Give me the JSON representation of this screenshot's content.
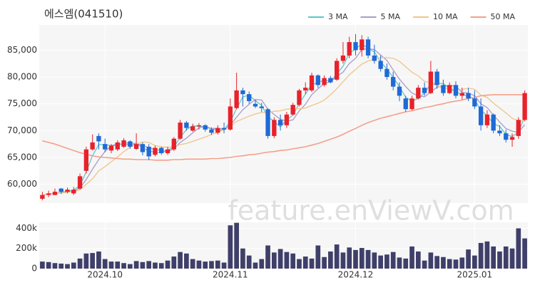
{
  "chart_data": {
    "type": "candlestick",
    "title": "에스엠(041510)",
    "watermark": "feature.enViewV.com",
    "categories": [
      null,
      null,
      null,
      null,
      null,
      null,
      null,
      null,
      null,
      null,
      "2024.10",
      null,
      null,
      null,
      null,
      null,
      null,
      null,
      null,
      null,
      null,
      null,
      null,
      null,
      null,
      null,
      null,
      null,
      null,
      null,
      "2024.11",
      null,
      null,
      null,
      null,
      null,
      null,
      null,
      null,
      null,
      null,
      null,
      null,
      null,
      null,
      null,
      null,
      null,
      null,
      null,
      "2024.12",
      null,
      null,
      null,
      null,
      null,
      null,
      null,
      null,
      null,
      null,
      null,
      null,
      null,
      null,
      null,
      null,
      null,
      null,
      "2025.01",
      null,
      null,
      null,
      null,
      null,
      null,
      null,
      null
    ],
    "candles": {
      "up_color": "#e8212b",
      "down_color": "#1f6ad6",
      "open": [
        57300,
        58000,
        58000,
        59200,
        58600,
        58300,
        59200,
        62500,
        66500,
        69000,
        67500,
        66300,
        66500,
        67000,
        68000,
        66600,
        67500,
        67000,
        65500,
        66800,
        65800,
        66500,
        68500,
        71500,
        70000,
        70800,
        71000,
        70200,
        69600,
        70500,
        70200,
        74200,
        77500,
        76800,
        75000,
        74500,
        74000,
        69000,
        72000,
        71000,
        73000,
        74800,
        77500,
        77500,
        80300,
        78500,
        79800,
        79500,
        83000,
        84000,
        86500,
        85000,
        87000,
        84000,
        83000,
        81500,
        80000,
        78200,
        76000,
        74000,
        76000,
        78000,
        77000,
        81000,
        78500,
        77000,
        78500,
        76500,
        77000,
        76000,
        74500,
        71000,
        73000,
        70000,
        69500,
        68300,
        69000,
        72000
      ],
      "high": [
        58600,
        58800,
        59200,
        59300,
        59400,
        59500,
        62000,
        67000,
        69300,
        69500,
        68500,
        67500,
        68200,
        68600,
        68200,
        69500,
        67800,
        67500,
        67200,
        67000,
        67000,
        68800,
        72000,
        71800,
        71300,
        71400,
        71200,
        70600,
        71000,
        71500,
        76000,
        80800,
        78000,
        77300,
        75800,
        75200,
        74200,
        72500,
        73000,
        73500,
        75200,
        77800,
        79000,
        80800,
        80500,
        80300,
        80200,
        83500,
        86500,
        87500,
        88000,
        87800,
        87500,
        86000,
        84000,
        82500,
        81000,
        79000,
        76500,
        76500,
        78500,
        79000,
        83000,
        81500,
        79500,
        79000,
        79200,
        78000,
        78000,
        77500,
        76000,
        73800,
        73200,
        71000,
        70200,
        69500,
        72500,
        77500
      ],
      "low": [
        57000,
        57600,
        58000,
        58200,
        58300,
        58000,
        59000,
        62000,
        66300,
        66500,
        66000,
        65800,
        66200,
        66800,
        66600,
        66400,
        65400,
        64500,
        65200,
        65500,
        65500,
        66200,
        68300,
        70000,
        69800,
        70200,
        69800,
        69200,
        69300,
        69500,
        70000,
        74000,
        74500,
        75000,
        74200,
        73500,
        68500,
        68600,
        70000,
        70500,
        72800,
        74500,
        76800,
        77200,
        78000,
        78200,
        78800,
        79300,
        82500,
        83500,
        84000,
        83800,
        83500,
        82500,
        81000,
        79500,
        77500,
        75500,
        73500,
        73800,
        75800,
        76500,
        76800,
        77800,
        76500,
        76800,
        76000,
        75800,
        75500,
        74000,
        70000,
        70500,
        69500,
        69000,
        67800,
        67000,
        68500,
        71800
      ],
      "close": [
        58000,
        58300,
        58600,
        58600,
        59000,
        59000,
        61500,
        66500,
        67800,
        68000,
        66500,
        67200,
        67800,
        68200,
        67000,
        67500,
        66000,
        65200,
        66800,
        65800,
        66500,
        68500,
        71500,
        70500,
        70800,
        71000,
        70200,
        69600,
        70500,
        70200,
        74500,
        77500,
        76800,
        75500,
        74500,
        74200,
        69000,
        72000,
        71000,
        73000,
        74800,
        77500,
        78000,
        80300,
        78500,
        79800,
        79000,
        83000,
        84000,
        86500,
        85000,
        87000,
        84000,
        83000,
        81500,
        80000,
        78200,
        76500,
        74000,
        76000,
        78000,
        77000,
        81000,
        78500,
        77000,
        78500,
        76500,
        77000,
        76000,
        74500,
        71000,
        73000,
        70000,
        69500,
        68300,
        68800,
        72000,
        77000
      ]
    },
    "series": [
      {
        "name": "3 MA",
        "color": "#5cc8c8",
        "values": [
          58000,
          58200,
          58300,
          58500,
          58700,
          58900,
          59800,
          62300,
          65300,
          67400,
          67400,
          67200,
          67200,
          67700,
          67700,
          67600,
          66800,
          66200,
          66000,
          65900,
          66400,
          66900,
          68800,
          70200,
          70900,
          70800,
          70700,
          70300,
          70100,
          70100,
          71700,
          74100,
          76300,
          76600,
          75600,
          74700,
          72600,
          71700,
          70700,
          72000,
          72900,
          75100,
          76800,
          78600,
          78900,
          79500,
          79100,
          80600,
          82000,
          84500,
          85200,
          86200,
          85300,
          84700,
          82800,
          81500,
          79900,
          78200,
          76200,
          75500,
          76000,
          77000,
          78700,
          78800,
          78800,
          77800,
          77300,
          76700,
          76500,
          75800,
          73800,
          72800,
          71300,
          70800,
          69300,
          68900,
          69700,
          72600
        ]
      },
      {
        "name": "5 MA",
        "color": "#a99cc8",
        "values": [
          58000,
          58200,
          58300,
          58400,
          58500,
          58700,
          59300,
          60900,
          62800,
          64600,
          66100,
          67200,
          67500,
          67500,
          67300,
          67500,
          67300,
          66800,
          66500,
          66300,
          66100,
          66600,
          67800,
          68600,
          69600,
          70500,
          70800,
          70400,
          70400,
          70300,
          71000,
          72500,
          73900,
          74900,
          75800,
          75700,
          74000,
          73000,
          72100,
          71800,
          72000,
          73700,
          74900,
          76700,
          77800,
          78800,
          79100,
          80100,
          80900,
          82500,
          83500,
          85100,
          85300,
          85100,
          84100,
          83100,
          81300,
          79600,
          78200,
          77000,
          76500,
          76300,
          77200,
          78100,
          78300,
          78400,
          78300,
          77100,
          77000,
          76500,
          75000,
          74300,
          72900,
          71600,
          70400,
          69900,
          69700,
          71100
        ]
      },
      {
        "name": "10 MA",
        "color": "#f0c48a",
        "values": [
          58000,
          58200,
          58300,
          58400,
          58500,
          58600,
          59000,
          60000,
          61000,
          62500,
          63300,
          64200,
          65100,
          66100,
          66900,
          67500,
          67900,
          67800,
          67200,
          67000,
          66900,
          67000,
          67400,
          67600,
          68000,
          68400,
          68800,
          69300,
          69700,
          70200,
          70800,
          71700,
          72200,
          72700,
          73100,
          73400,
          73300,
          73600,
          73700,
          74000,
          74100,
          74100,
          74200,
          74700,
          75100,
          75700,
          76700,
          77800,
          79100,
          80400,
          81400,
          82400,
          83000,
          83300,
          83600,
          83600,
          83500,
          82900,
          81900,
          80900,
          80200,
          79200,
          78900,
          78400,
          77900,
          77800,
          77600,
          77700,
          77900,
          77700,
          76600,
          76200,
          75100,
          74200,
          73300,
          72300,
          71800,
          71800
        ]
      },
      {
        "name": "50 MA",
        "color": "#f4a08a",
        "values": [
          68100,
          67800,
          67500,
          67100,
          66700,
          66300,
          65900,
          65600,
          65300,
          65100,
          65000,
          64900,
          64800,
          64700,
          64700,
          64600,
          64600,
          64600,
          64500,
          64500,
          64500,
          64600,
          64600,
          64700,
          64700,
          64700,
          64700,
          64800,
          64800,
          64900,
          65000,
          65200,
          65300,
          65500,
          65600,
          65800,
          66000,
          66100,
          66300,
          66400,
          66600,
          66800,
          67000,
          67300,
          67600,
          68000,
          68400,
          68800,
          69300,
          69900,
          70400,
          71000,
          71500,
          71900,
          72300,
          72600,
          72900,
          73200,
          73500,
          73700,
          74000,
          74300,
          74500,
          74800,
          75000,
          75300,
          75500,
          75700,
          76000,
          76200,
          76500,
          76600,
          76700,
          76700,
          76700,
          76700,
          76700,
          76700
        ]
      }
    ],
    "ylim": [
      56500,
      89700
    ],
    "yticks": [
      {
        "value": 60000,
        "label": "60,000"
      },
      {
        "value": 65000,
        "label": "65,000"
      },
      {
        "value": 70000,
        "label": "70,000"
      },
      {
        "value": 75000,
        "label": "75,000"
      },
      {
        "value": 80000,
        "label": "80,000"
      },
      {
        "value": 85000,
        "label": "85,000"
      }
    ],
    "volume": {
      "color": "#3f3f6a",
      "ylim": [
        0,
        460000
      ],
      "yticks": [
        0,
        {
          "value": 200000,
          "label": "200k"
        },
        {
          "value": 400000,
          "label": "400k"
        }
      ],
      "values": [
        70000,
        65000,
        55000,
        50000,
        45000,
        60000,
        100000,
        150000,
        155000,
        170000,
        95000,
        70000,
        70000,
        55000,
        45000,
        75000,
        65000,
        75000,
        60000,
        55000,
        80000,
        120000,
        165000,
        150000,
        95000,
        80000,
        70000,
        75000,
        80000,
        60000,
        430000,
        455000,
        200000,
        130000,
        60000,
        95000,
        230000,
        160000,
        195000,
        165000,
        150000,
        95000,
        120000,
        100000,
        230000,
        115000,
        170000,
        240000,
        160000,
        210000,
        185000,
        205000,
        185000,
        160000,
        130000,
        140000,
        165000,
        110000,
        100000,
        220000,
        170000,
        80000,
        160000,
        125000,
        115000,
        95000,
        90000,
        110000,
        190000,
        130000,
        255000,
        270000,
        220000,
        170000,
        220000,
        200000,
        400000,
        300000
      ]
    },
    "grid": true,
    "legend": "top-right"
  }
}
